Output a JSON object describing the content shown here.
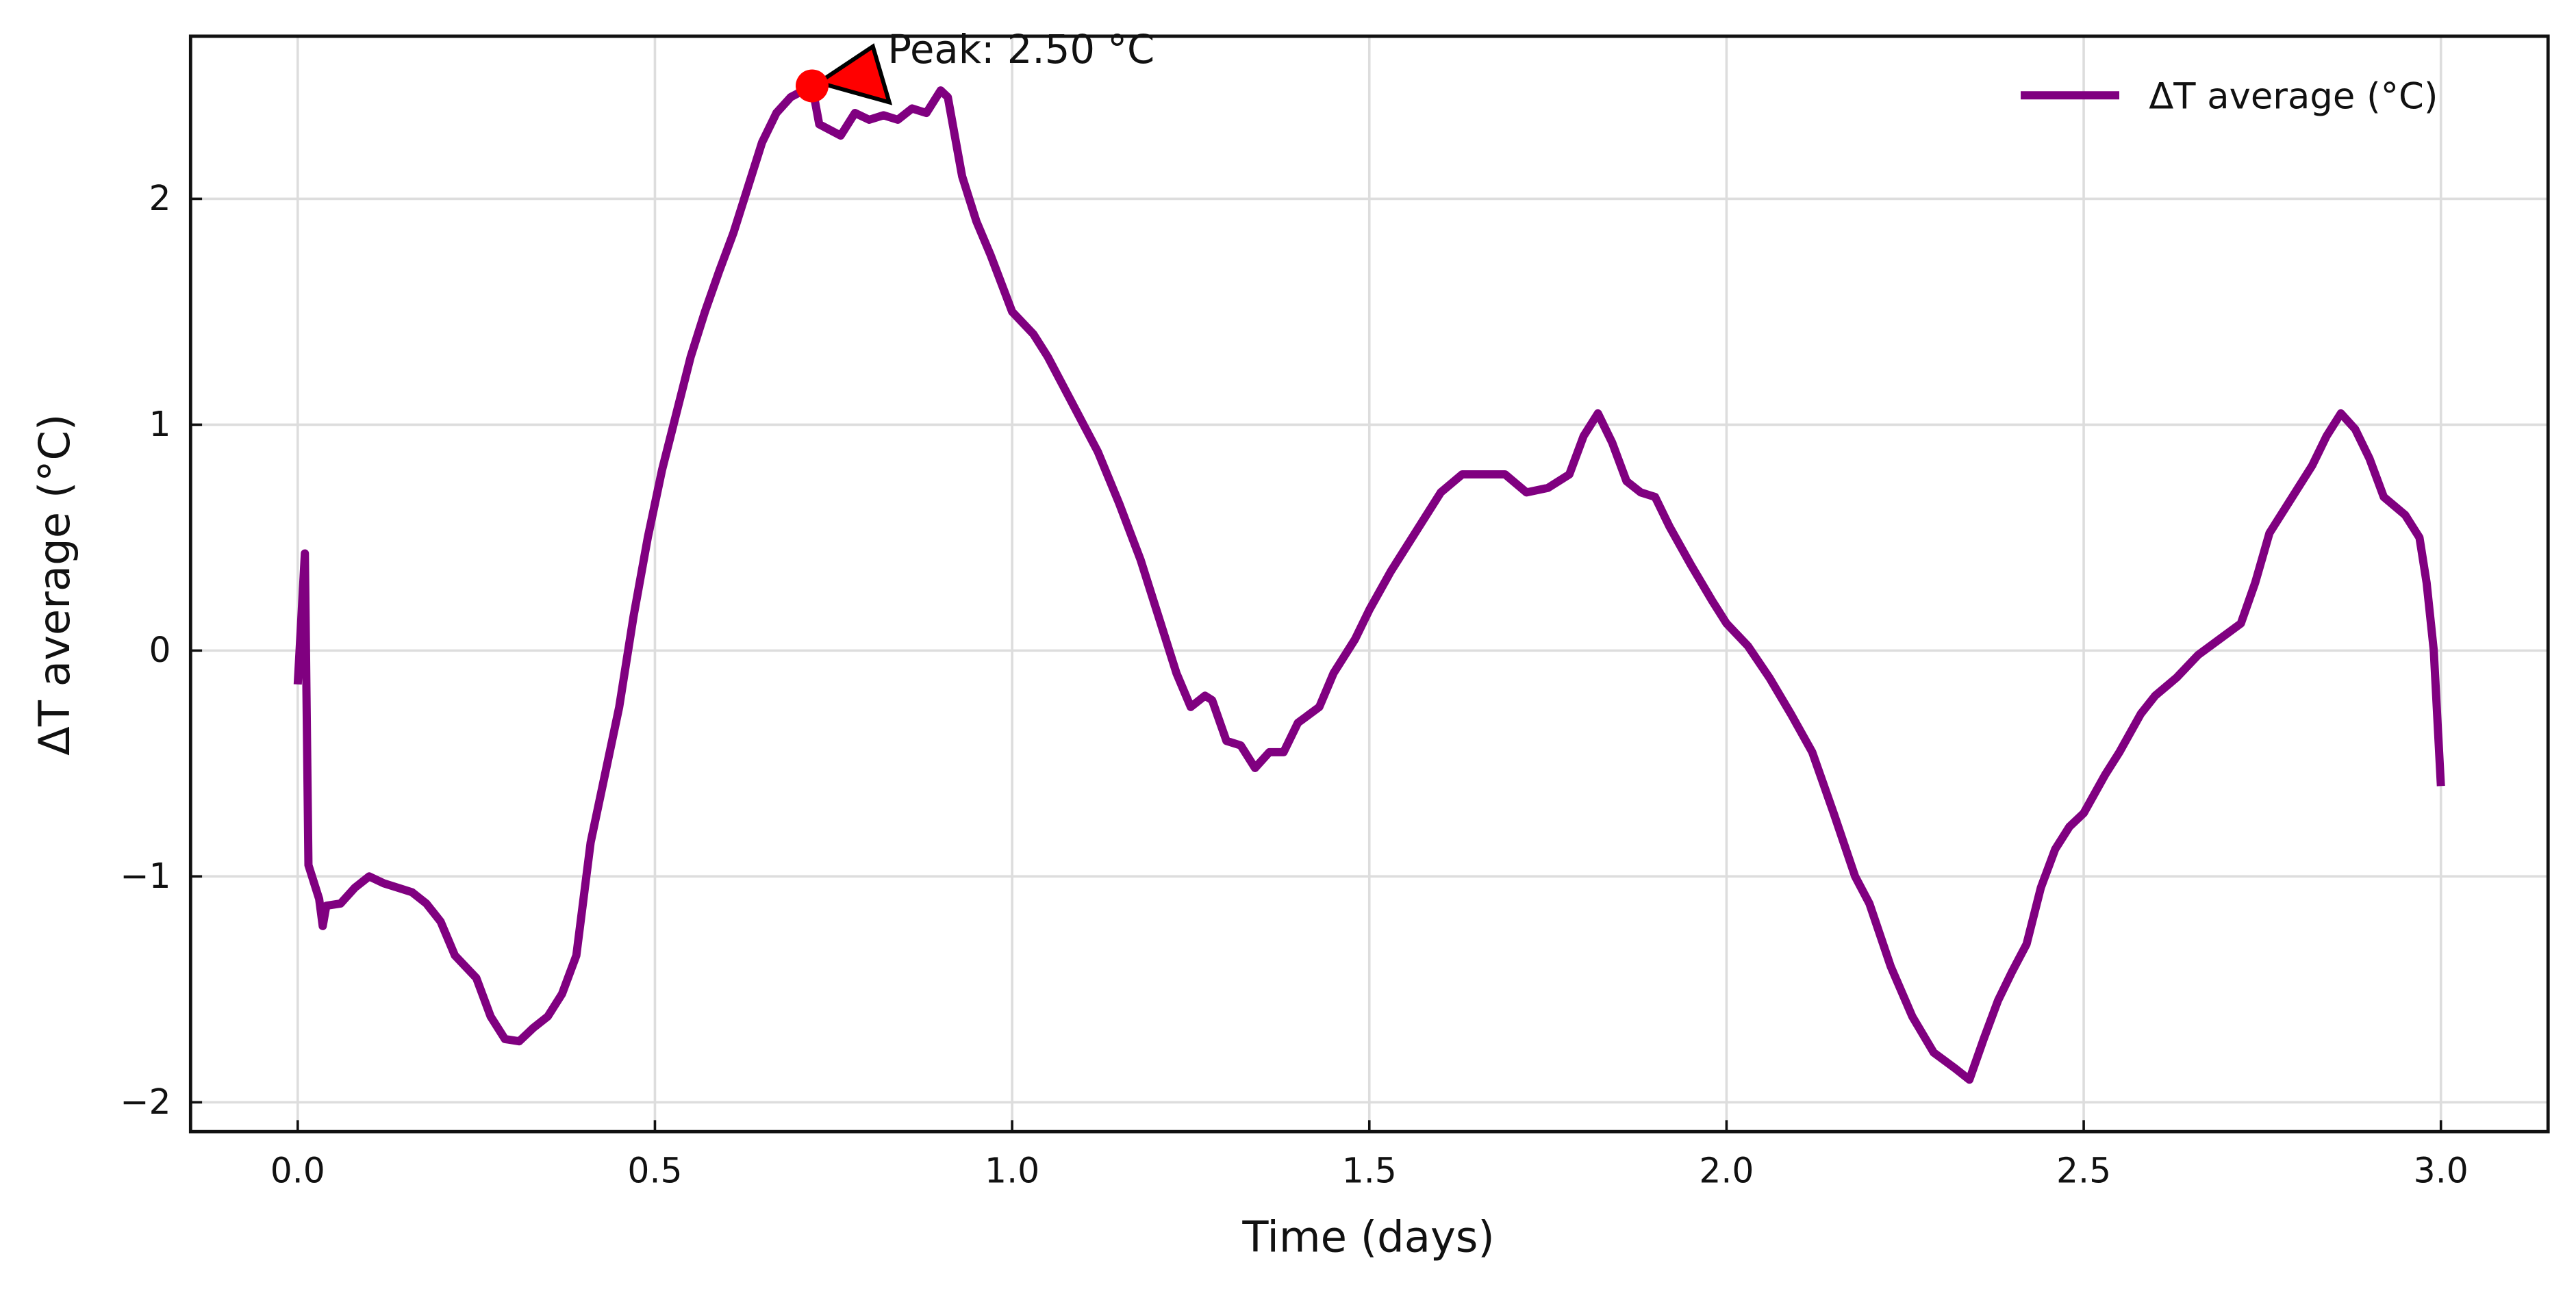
{
  "chart_data": {
    "type": "line",
    "xlabel": "Time (days)",
    "ylabel": "ΔT average (°C)",
    "x": [
      0.0,
      0.01,
      0.015,
      0.03,
      0.035,
      0.04,
      0.06,
      0.08,
      0.1,
      0.12,
      0.14,
      0.16,
      0.18,
      0.2,
      0.22,
      0.25,
      0.27,
      0.29,
      0.31,
      0.33,
      0.35,
      0.37,
      0.39,
      0.41,
      0.43,
      0.45,
      0.47,
      0.49,
      0.51,
      0.53,
      0.55,
      0.57,
      0.59,
      0.61,
      0.63,
      0.65,
      0.67,
      0.69,
      0.72,
      0.73,
      0.76,
      0.78,
      0.8,
      0.82,
      0.84,
      0.86,
      0.88,
      0.9,
      0.91,
      0.93,
      0.95,
      0.97,
      1.0,
      1.03,
      1.05,
      1.08,
      1.1,
      1.12,
      1.15,
      1.18,
      1.2,
      1.23,
      1.25,
      1.27,
      1.28,
      1.3,
      1.32,
      1.34,
      1.36,
      1.38,
      1.4,
      1.43,
      1.45,
      1.48,
      1.5,
      1.53,
      1.55,
      1.58,
      1.6,
      1.63,
      1.66,
      1.69,
      1.72,
      1.75,
      1.78,
      1.8,
      1.82,
      1.84,
      1.86,
      1.88,
      1.9,
      1.92,
      1.95,
      1.98,
      2.0,
      2.03,
      2.06,
      2.09,
      2.12,
      2.15,
      2.18,
      2.2,
      2.23,
      2.26,
      2.29,
      2.32,
      2.34,
      2.36,
      2.38,
      2.4,
      2.42,
      2.44,
      2.46,
      2.48,
      2.5,
      2.53,
      2.55,
      2.58,
      2.6,
      2.63,
      2.66,
      2.69,
      2.72,
      2.74,
      2.76,
      2.78,
      2.8,
      2.82,
      2.84,
      2.86,
      2.88,
      2.9,
      2.92,
      2.95,
      2.97,
      2.98,
      2.99,
      3.0
    ],
    "series": [
      {
        "name": "ΔT average (°C)",
        "color": "#800080",
        "values": [
          -0.15,
          0.43,
          -0.95,
          -1.1,
          -1.22,
          -1.13,
          -1.12,
          -1.05,
          -1.0,
          -1.03,
          -1.05,
          -1.07,
          -1.12,
          -1.2,
          -1.35,
          -1.45,
          -1.62,
          -1.72,
          -1.73,
          -1.67,
          -1.62,
          -1.52,
          -1.35,
          -0.85,
          -0.55,
          -0.25,
          0.15,
          0.5,
          0.8,
          1.05,
          1.3,
          1.5,
          1.68,
          1.85,
          2.05,
          2.25,
          2.38,
          2.45,
          2.5,
          2.33,
          2.28,
          2.38,
          2.35,
          2.37,
          2.35,
          2.4,
          2.38,
          2.48,
          2.45,
          2.1,
          1.9,
          1.75,
          1.5,
          1.4,
          1.3,
          1.12,
          1.0,
          0.88,
          0.65,
          0.4,
          0.2,
          -0.1,
          -0.25,
          -0.2,
          -0.22,
          -0.4,
          -0.42,
          -0.52,
          -0.45,
          -0.45,
          -0.32,
          -0.25,
          -0.1,
          0.05,
          0.18,
          0.35,
          0.45,
          0.6,
          0.7,
          0.78,
          0.78,
          0.78,
          0.7,
          0.72,
          0.78,
          0.95,
          1.05,
          0.92,
          0.75,
          0.7,
          0.68,
          0.55,
          0.38,
          0.22,
          0.12,
          0.02,
          -0.12,
          -0.28,
          -0.45,
          -0.72,
          -1.0,
          -1.12,
          -1.4,
          -1.62,
          -1.78,
          -1.85,
          -1.9,
          -1.72,
          -1.55,
          -1.42,
          -1.3,
          -1.05,
          -0.88,
          -0.78,
          -0.72,
          -0.55,
          -0.45,
          -0.28,
          -0.2,
          -0.12,
          -0.02,
          0.05,
          0.12,
          0.3,
          0.52,
          0.62,
          0.72,
          0.82,
          0.95,
          1.05,
          0.98,
          0.85,
          0.68,
          0.6,
          0.5,
          0.3,
          0.0,
          -0.6
        ]
      }
    ],
    "annotation": {
      "text": "Peak: 2.50 °C",
      "x": 0.72,
      "y": 2.5,
      "color": "#ff0000"
    },
    "xlim": [
      -0.15,
      3.15
    ],
    "ylim": [
      -2.13,
      2.72
    ],
    "xticks": [
      {
        "value": 0,
        "label": "0.0"
      },
      0.5,
      {
        "value": 1,
        "label": "1.0"
      },
      1.5,
      {
        "value": 2,
        "label": "2.0"
      },
      2.5,
      {
        "value": 3,
        "label": "3.0"
      }
    ],
    "yticks": [
      {
        "value": -2,
        "label": "−2"
      },
      {
        "value": -1,
        "label": "−1"
      },
      0,
      1,
      2
    ],
    "grid": true,
    "legend": "upper right"
  }
}
